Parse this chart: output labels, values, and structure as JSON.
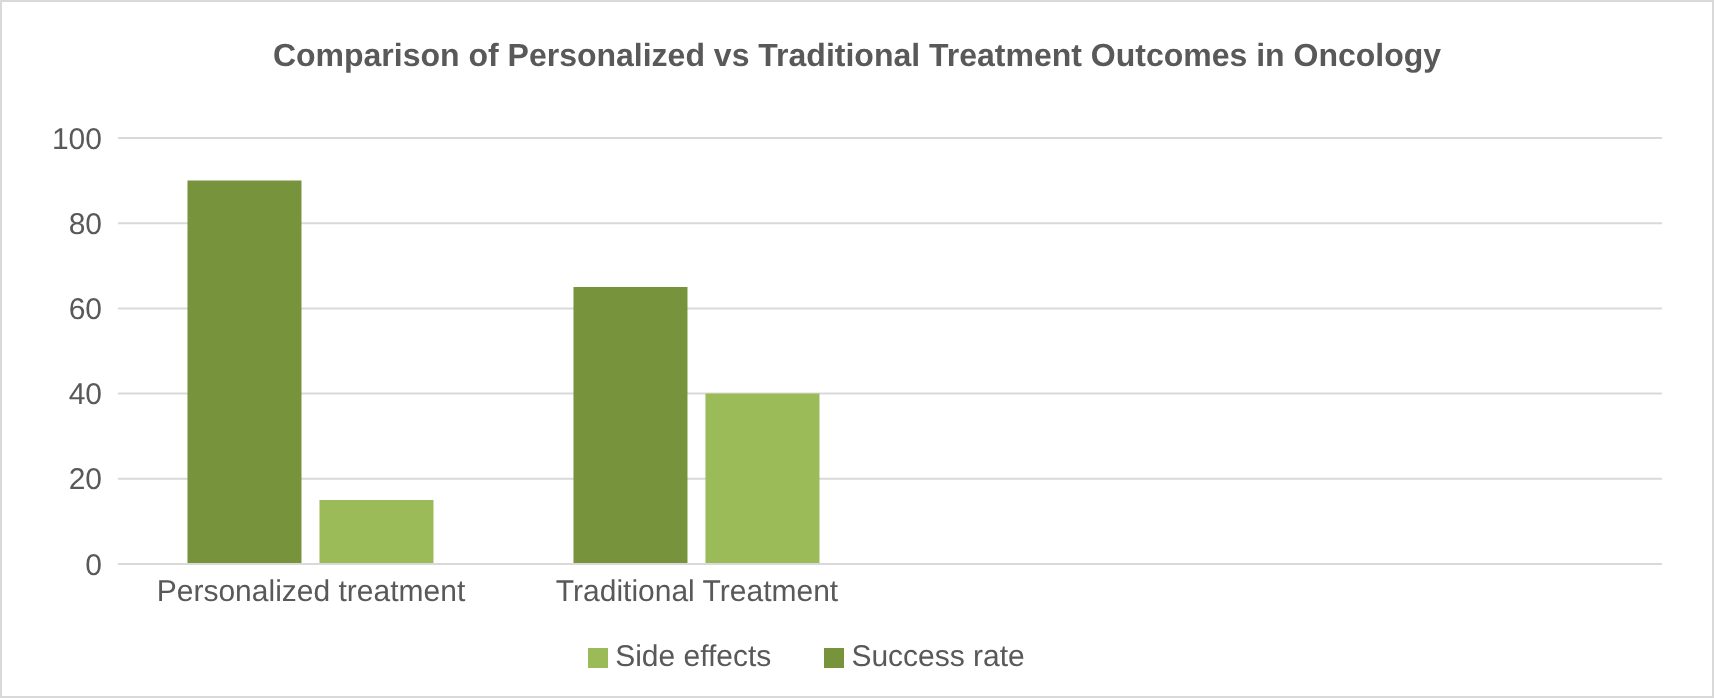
{
  "chart_data": {
    "type": "bar",
    "title": "Comparison of Personalized vs Traditional Treatment Outcomes in Oncology",
    "categories": [
      "Personalized treatment",
      "Traditional Treatment",
      null,
      null
    ],
    "series": [
      {
        "name": "Success rate",
        "color": "#77933c",
        "values": [
          90,
          65,
          null,
          null
        ]
      },
      {
        "name": "Side effects",
        "color": "#9bbb59",
        "values": [
          15,
          40,
          null,
          null
        ]
      }
    ],
    "ylim": [
      0,
      100
    ],
    "yticks": [
      0,
      20,
      40,
      60,
      80,
      100
    ],
    "grid": "y",
    "legend": "bottom"
  }
}
